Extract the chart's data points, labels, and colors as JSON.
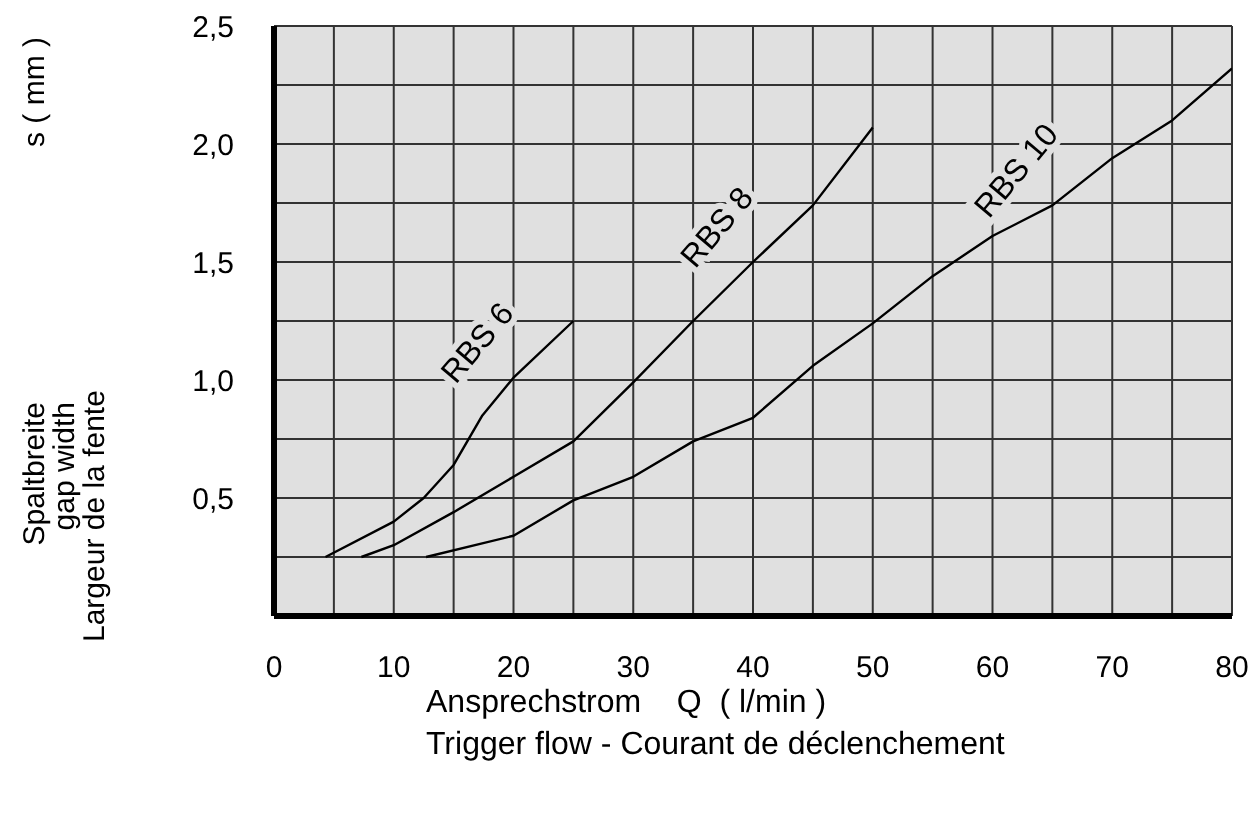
{
  "chart_data": {
    "type": "line",
    "xlabel": "Ansprechstrom    Q  ( l/min )\nTrigger flow - Courant de déclenchement",
    "ylabel": "Spaltbreite\ngap width\nLargeur de la fente",
    "annotations": [
      "s ( mm )"
    ],
    "xlim": [
      0,
      80
    ],
    "ylim": [
      0,
      2.5
    ],
    "xticks": [
      0,
      {
        "value": 5,
        "label": null
      },
      10,
      {
        "value": 15,
        "label": null
      },
      20,
      {
        "value": 25,
        "label": null
      },
      30,
      {
        "value": 35,
        "label": null
      },
      40,
      {
        "value": 45,
        "label": null
      },
      50,
      {
        "value": 55,
        "label": null
      },
      60,
      {
        "value": 65,
        "label": null
      },
      70,
      {
        "value": 75,
        "label": null
      },
      80
    ],
    "yticks": [
      {
        "value": 0.25,
        "label": null
      },
      {
        "value": 0.5,
        "label": "0,5"
      },
      {
        "value": 0.75,
        "label": null
      },
      {
        "value": 1,
        "label": "1,0"
      },
      {
        "value": 1.25,
        "label": null
      },
      {
        "value": 1.5,
        "label": "1,5"
      },
      {
        "value": 1.75,
        "label": null
      },
      {
        "value": 2,
        "label": "2,0"
      },
      {
        "value": 2.25,
        "label": null
      },
      {
        "value": 2.5,
        "label": "2,5"
      }
    ],
    "grid": true,
    "marker": "none",
    "line_style": "solid",
    "series": [
      {
        "name": "RBS 6",
        "color": "#000000",
        "x": [
          4.3,
          10,
          12.5,
          15,
          17.4,
          20,
          25
        ],
        "values": [
          0.25,
          0.4,
          0.5,
          0.64,
          0.85,
          1.01,
          1.25
        ]
      },
      {
        "name": "RBS 8",
        "color": "#000000",
        "x": [
          7.3,
          10,
          15,
          20,
          25,
          30,
          35,
          40,
          45,
          50
        ],
        "values": [
          0.25,
          0.3,
          0.44,
          0.59,
          0.74,
          0.99,
          1.25,
          1.5,
          1.74,
          2.07
        ]
      },
      {
        "name": "RBS 10",
        "color": "#000000",
        "x": [
          12.7,
          20,
          25,
          30,
          35,
          40,
          45,
          50,
          55,
          60,
          65,
          70,
          75,
          80
        ],
        "values": [
          0.25,
          0.34,
          0.49,
          0.59,
          0.74,
          0.84,
          1.06,
          1.24,
          1.44,
          1.61,
          1.74,
          1.94,
          2.1,
          2.32
        ]
      }
    ]
  }
}
